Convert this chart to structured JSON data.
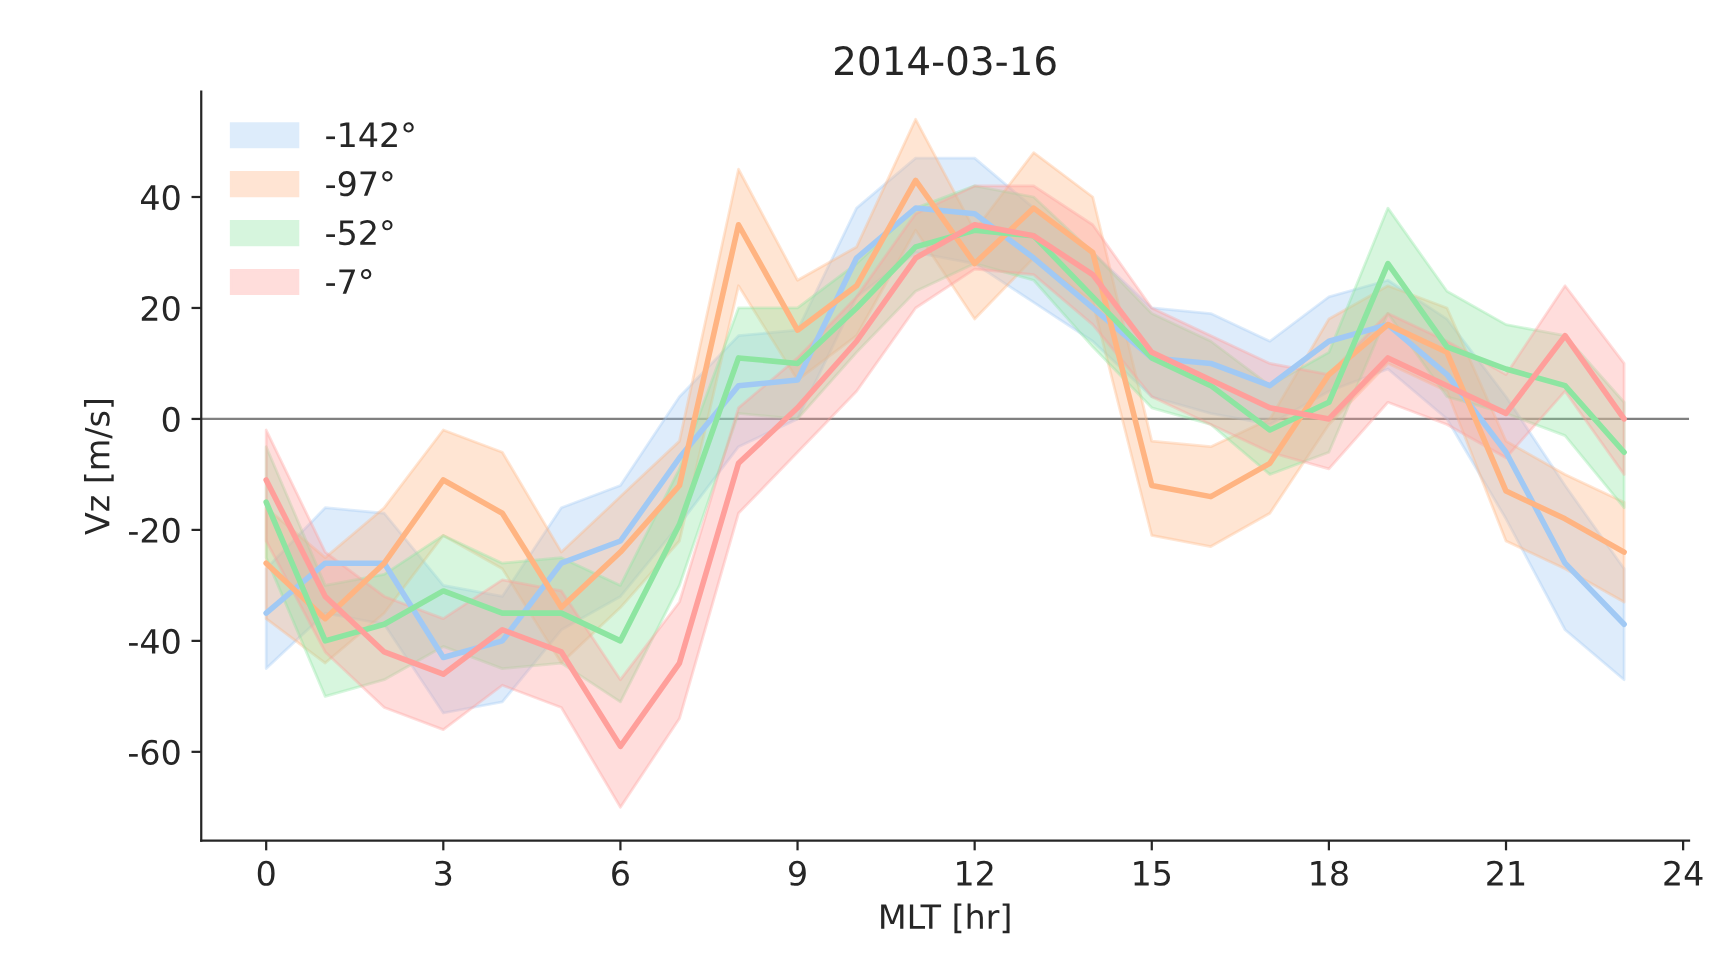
{
  "chart_data": {
    "type": "line",
    "title": "2014-03-16",
    "xlabel": "MLT [hr]",
    "ylabel": "Vz [m/s]",
    "x": [
      0,
      1,
      2,
      3,
      4,
      5,
      6,
      7,
      8,
      9,
      10,
      11,
      12,
      13,
      14,
      15,
      16,
      17,
      18,
      19,
      20,
      21,
      22,
      23
    ],
    "xlim": [
      -1.1,
      24.1
    ],
    "xticks": [
      0,
      3,
      6,
      9,
      12,
      15,
      18,
      21,
      24
    ],
    "ylim": [
      -76,
      59
    ],
    "yticks": [
      -60,
      -40,
      -20,
      0,
      20,
      40
    ],
    "grid": false,
    "legend": "top left",
    "marker": "none",
    "line_style": "solid",
    "ref_lines": [
      {
        "axis": "y",
        "value": 0,
        "color": "#808080"
      }
    ],
    "series": [
      {
        "name": "-142°",
        "color": "#a1c9f4",
        "values": [
          -35,
          -26,
          -26,
          -43,
          -40,
          -26,
          -22,
          -7,
          6,
          7,
          29,
          38,
          37,
          29,
          20,
          11,
          10,
          6,
          14,
          17,
          8,
          -6,
          -26,
          -37
        ],
        "upper": [
          -27,
          -16,
          -17,
          -30,
          -32,
          -16,
          -12,
          4,
          15,
          16,
          38,
          47,
          47,
          38,
          30,
          20,
          19,
          14,
          22,
          25,
          18,
          4,
          -12,
          -27
        ],
        "lower": [
          -45,
          -35,
          -37,
          -53,
          -51,
          -38,
          -32,
          -19,
          -5,
          0,
          22,
          30,
          28,
          21,
          14,
          4,
          1,
          -1,
          5,
          9,
          0,
          -18,
          -38,
          -47
        ]
      },
      {
        "name": "-97°",
        "color": "#ffb482",
        "values": [
          -26,
          -36,
          -26,
          -11,
          -17,
          -34,
          -24,
          -12,
          35,
          16,
          24,
          43,
          28,
          38,
          30,
          -12,
          -14,
          -8,
          8,
          17,
          12,
          -13,
          -18,
          -24
        ],
        "upper": [
          -16,
          -25,
          -16,
          -2,
          -6,
          -24,
          -14,
          -4,
          45,
          25,
          31,
          54,
          34,
          48,
          40,
          -4,
          -5,
          0,
          18,
          24,
          20,
          -4,
          -10,
          -15
        ],
        "lower": [
          -36,
          -44,
          -35,
          -21,
          -27,
          -44,
          -34,
          -22,
          24,
          7,
          15,
          34,
          18,
          29,
          21,
          -21,
          -23,
          -17,
          -1,
          10,
          5,
          -22,
          -27,
          -33
        ]
      },
      {
        "name": "-52°",
        "color": "#8de5a1",
        "values": [
          -15,
          -40,
          -37,
          -31,
          -35,
          -35,
          -40,
          -19,
          11,
          10,
          20,
          31,
          34,
          33,
          22,
          11,
          6,
          -2,
          3,
          28,
          13,
          9,
          6,
          -6
        ],
        "upper": [
          -5,
          -30,
          -28,
          -21,
          -26,
          -25,
          -30,
          -9,
          20,
          20,
          28,
          38,
          42,
          40,
          30,
          19,
          14,
          6,
          12,
          38,
          23,
          17,
          15,
          3
        ],
        "lower": [
          -25,
          -50,
          -47,
          -41,
          -45,
          -44,
          -51,
          -30,
          1,
          0,
          12,
          23,
          28,
          25,
          13,
          2,
          -1,
          -10,
          -6,
          19,
          4,
          1,
          -3,
          -16
        ]
      },
      {
        "name": "-7°",
        "color": "#ff9f9b",
        "values": [
          -11,
          -32,
          -42,
          -46,
          -38,
          -42,
          -59,
          -44,
          -8,
          2,
          14,
          29,
          35,
          33,
          26,
          12,
          7,
          2,
          0,
          11,
          6,
          1,
          15,
          0
        ],
        "upper": [
          -2,
          -24,
          -32,
          -36,
          -29,
          -31,
          -47,
          -33,
          2,
          11,
          22,
          37,
          42,
          42,
          35,
          20,
          15,
          10,
          8,
          19,
          14,
          8,
          24,
          10
        ],
        "lower": [
          -22,
          -42,
          -52,
          -56,
          -48,
          -52,
          -70,
          -54,
          -17,
          -6,
          5,
          20,
          27,
          26,
          17,
          4,
          -1,
          -6,
          -9,
          3,
          -1,
          -7,
          5,
          -10
        ]
      }
    ]
  }
}
